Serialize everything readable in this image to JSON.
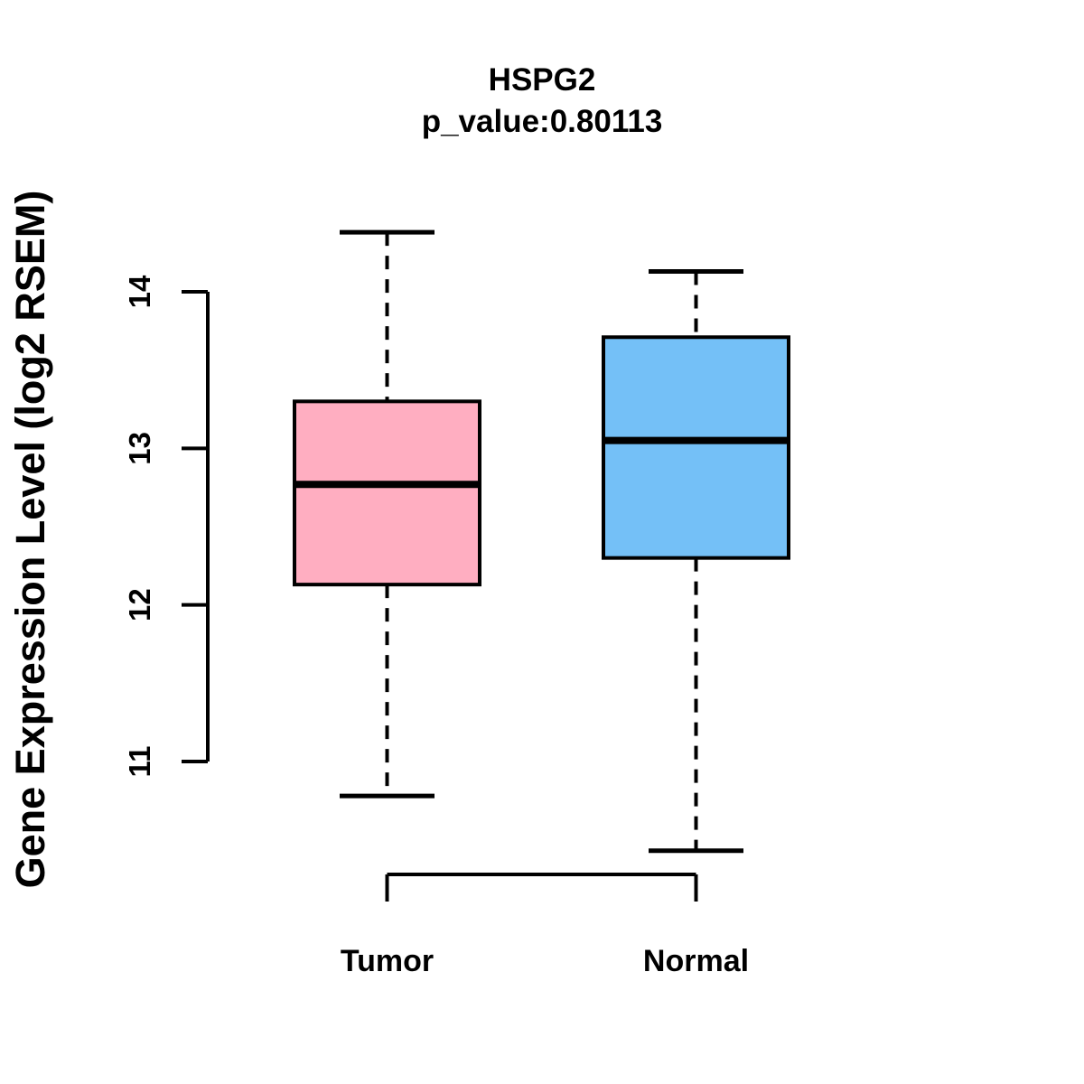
{
  "chart_data": {
    "type": "boxplot",
    "title": "HSPG2",
    "subtitle": "p_value:0.80113",
    "ylabel": "Gene Expression Level (log2 RSEM)",
    "yticks": [
      11,
      12,
      13,
      14
    ],
    "ylim": [
      10.3,
      14.5
    ],
    "grid": "off",
    "legend": "none",
    "categories": [
      "Tumor",
      "Normal"
    ],
    "series": [
      {
        "name": "Tumor",
        "color": "#FFAEC1",
        "whisker_low": 10.78,
        "q1": 12.13,
        "median": 12.77,
        "q3": 13.3,
        "whisker_high": 14.38
      },
      {
        "name": "Normal",
        "color": "#74C0F7",
        "whisker_low": 10.43,
        "q1": 12.3,
        "median": 13.05,
        "q3": 13.71,
        "whisker_high": 14.13
      }
    ],
    "box_border_color": "#000000",
    "text_color": "#000000"
  }
}
